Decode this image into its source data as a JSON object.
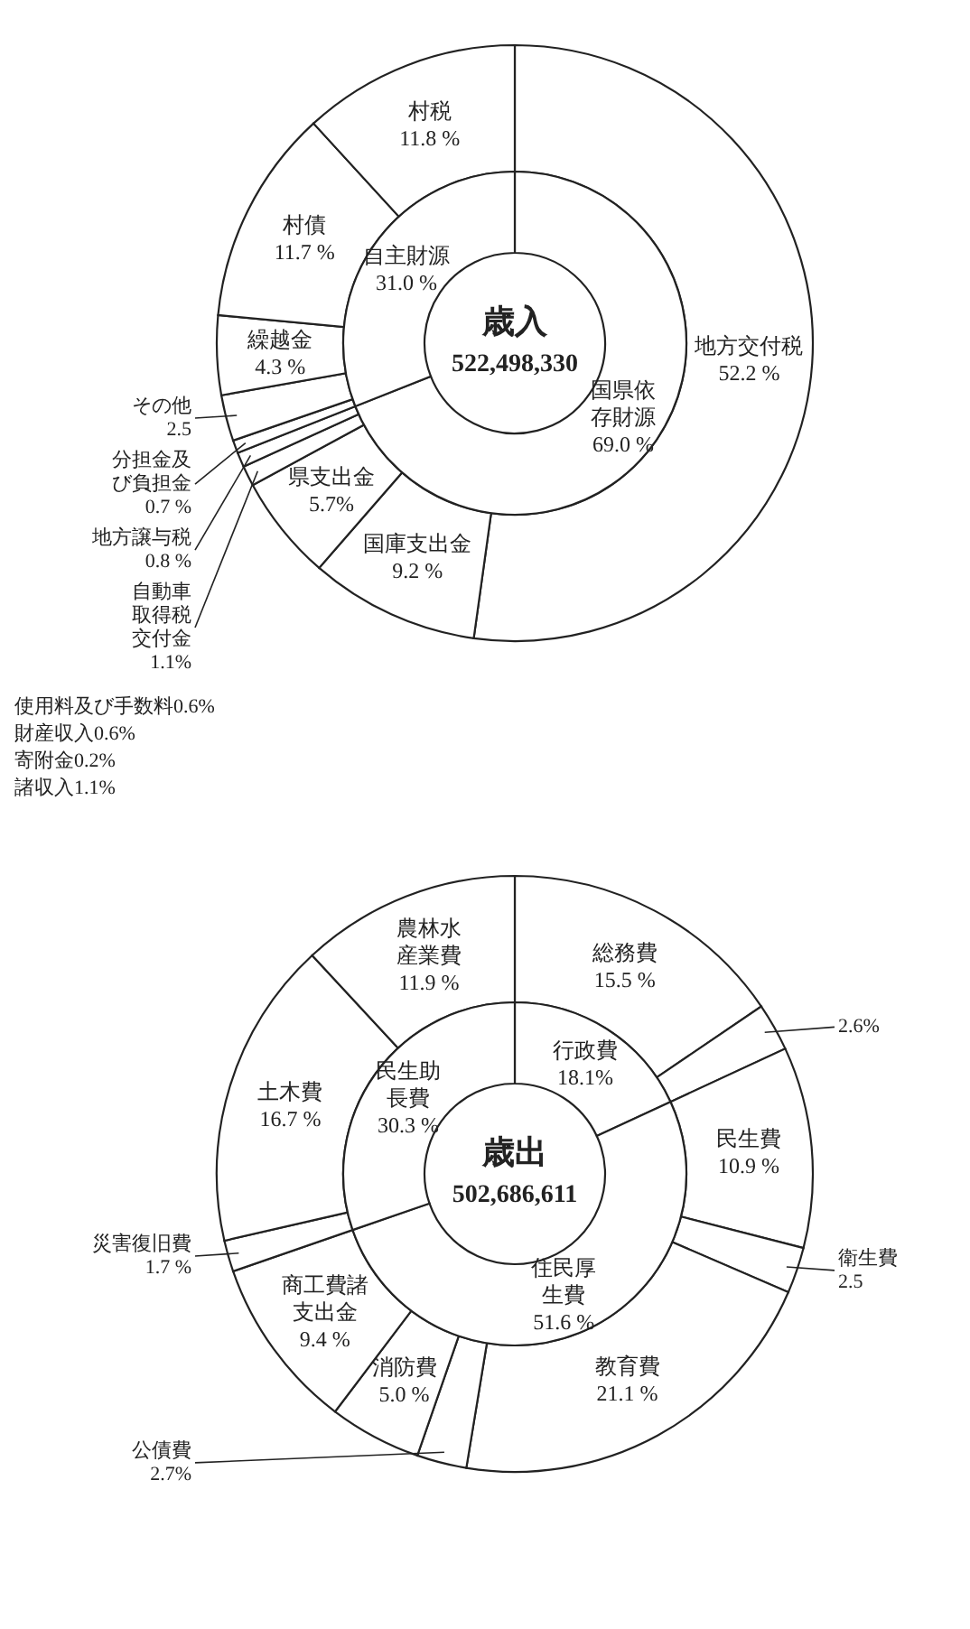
{
  "chart_data": [
    {
      "type": "donut",
      "categories": [
        "地方交付税",
        "国庫支出金",
        "県支出金",
        "自動車取得税交付金",
        "地方譲与税",
        "分担金及び負担金",
        "その他",
        "繰越金",
        "村債",
        "村税"
      ],
      "values": [
        52.2,
        9.2,
        5.7,
        1.1,
        0.8,
        0.7,
        2.5,
        4.3,
        11.7,
        11.8
      ],
      "value_labels": [
        "52.2 %",
        "9.2 %",
        "5.7%",
        "1.1%",
        "0.8 %",
        "0.7 %",
        "2.5",
        "4.3 %",
        "11.7 %",
        "11.8 %"
      ],
      "annotations": [
        "使用料及び手数料0.6%",
        "財産収入0.6%",
        "寄附金0.2%",
        "諸収入1.1%"
      ]
    },
    {
      "type": "donut",
      "title": "歳入",
      "subtitle": "522,498,330",
      "categories": [
        "国県依存財源",
        "自主財源"
      ],
      "values": [
        69.0,
        31.0
      ],
      "value_labels": [
        "69.0 %",
        "31.0 %"
      ]
    },
    {
      "type": "donut",
      "categories": [
        "総務費",
        null,
        "民生費",
        "衛生費",
        "教育費",
        "公債費",
        "消防費",
        "商工費諸支出金",
        "災害復旧費",
        "土木費",
        "農林水産業費"
      ],
      "values": [
        15.5,
        2.6,
        10.9,
        2.5,
        21.1,
        2.7,
        5.0,
        9.4,
        1.7,
        16.7,
        11.9
      ],
      "value_labels": [
        "15.5 %",
        "2.6%",
        "10.9 %",
        "2.5",
        "21.1 %",
        "2.7%",
        "5.0 %",
        "9.4 %",
        "1.7 %",
        "16.7 %",
        "11.9 %"
      ]
    },
    {
      "type": "donut",
      "title": "歳出",
      "subtitle": "502,686,611",
      "categories": [
        "行政費",
        "住民厚生費",
        "民生助長費"
      ],
      "values": [
        18.1,
        51.6,
        30.3
      ],
      "value_labels": [
        "18.1%",
        "51.6 %",
        "30.3 %"
      ]
    }
  ]
}
